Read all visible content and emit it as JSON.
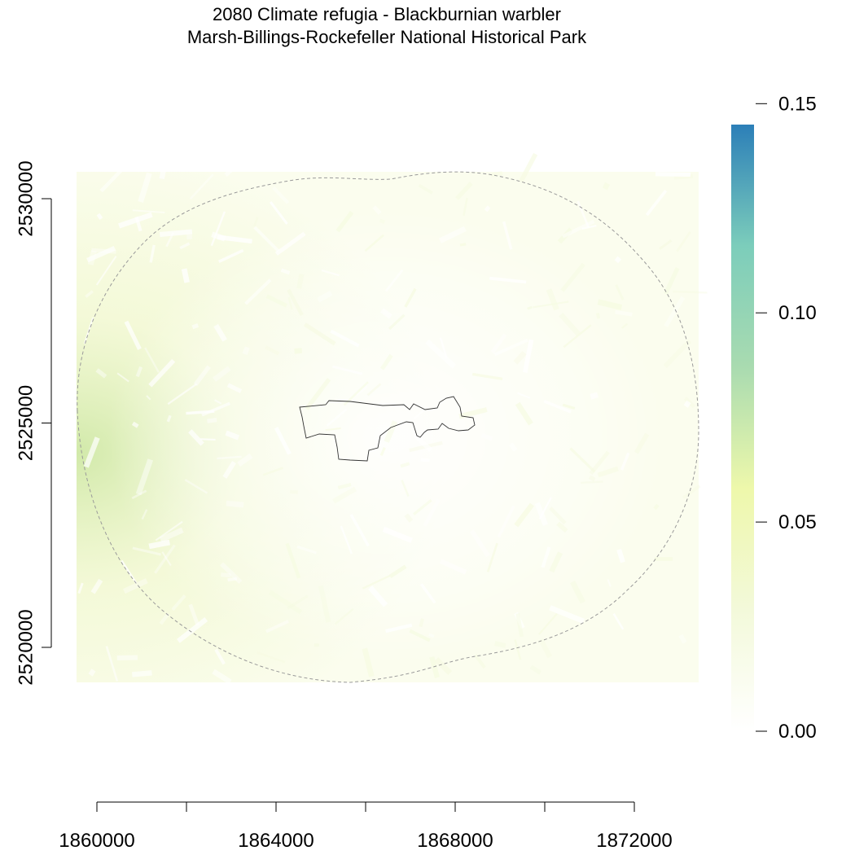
{
  "title": "2080 Climate refugia - Blackburnian warbler",
  "subtitle": "Marsh-Billings-Rockefeller National Historical Park",
  "x_axis": {
    "min": 1859000,
    "max": 1873400,
    "ticks": [
      1860000,
      1862000,
      1864000,
      1866000,
      1868000,
      1870000,
      1872000
    ],
    "tick_labels": [
      {
        "value": 1860000,
        "label": "1860000"
      },
      {
        "value": 1864000,
        "label": "1864000"
      },
      {
        "value": 1868000,
        "label": "1868000"
      },
      {
        "value": 1872000,
        "label": "1872000"
      }
    ]
  },
  "y_axis": {
    "min": 2519250,
    "max": 2530600,
    "ticks": [
      2520000,
      2525000,
      2530000
    ],
    "tick_labels": [
      {
        "value": 2520000,
        "label": "2520000"
      },
      {
        "value": 2525000,
        "label": "2525000"
      },
      {
        "value": 2530000,
        "label": "2530000"
      }
    ]
  },
  "legend": {
    "min": 0.0,
    "max": 0.145,
    "colors": [
      "#ffffff",
      "#f3f9da",
      "#eef8ab",
      "#a9dbb0",
      "#7ccdbb",
      "#2c7fb8"
    ],
    "ticks": [
      {
        "value": 0.0,
        "label": "0.00"
      },
      {
        "value": 0.05,
        "label": "0.05"
      },
      {
        "value": 0.1,
        "label": "0.10"
      },
      {
        "value": 0.15,
        "label": "0.15"
      }
    ]
  },
  "colors": {
    "raster_low": "#fbfdee",
    "raster_mid": "#eef6c6",
    "raster_high": "#cfe8a6",
    "buffer_line": "#9a9a9a",
    "park_line": "#333333"
  },
  "features": {
    "buffer_name": "buffer",
    "park_name": "park-boundary"
  }
}
